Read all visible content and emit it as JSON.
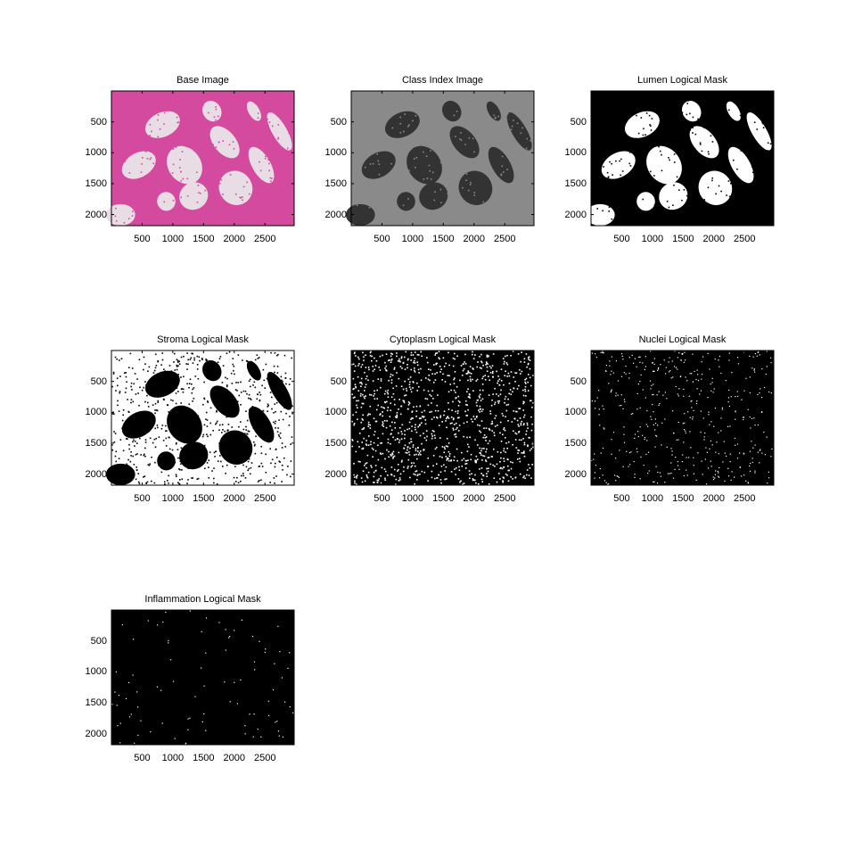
{
  "chart_data": [
    {
      "type": "heatmap",
      "title": "Base Image",
      "xticks": [
        500,
        1000,
        1500,
        2000,
        2500
      ],
      "yticks": [
        500,
        1000,
        1500,
        2000
      ],
      "xlim": [
        0,
        2976
      ],
      "ylim": [
        2180,
        0
      ],
      "colors": {
        "background": "#d44a9e",
        "highlight": "#e8dde4"
      }
    },
    {
      "type": "heatmap",
      "title": "Class Index Image",
      "xticks": [
        500,
        1000,
        1500,
        2000,
        2500
      ],
      "yticks": [
        500,
        1000,
        1500,
        2000
      ],
      "xlim": [
        0,
        2976
      ],
      "ylim": [
        2180,
        0
      ],
      "colors": {
        "background": "#8a8a8a",
        "highlight": "#333333"
      }
    },
    {
      "type": "heatmap",
      "title": "Lumen Logical Mask",
      "xticks": [
        500,
        1000,
        1500,
        2000,
        2500
      ],
      "yticks": [
        500,
        1000,
        1500,
        2000
      ],
      "xlim": [
        0,
        2976
      ],
      "ylim": [
        2180,
        0
      ],
      "colors": {
        "background": "#000000",
        "highlight": "#ffffff"
      }
    },
    {
      "type": "heatmap",
      "title": "Stroma Logical Mask",
      "xticks": [
        500,
        1000,
        1500,
        2000,
        2500
      ],
      "yticks": [
        500,
        1000,
        1500,
        2000
      ],
      "xlim": [
        0,
        2976
      ],
      "ylim": [
        2180,
        0
      ],
      "colors": {
        "background": "#ffffff",
        "highlight": "#000000"
      }
    },
    {
      "type": "heatmap",
      "title": "Cytoplasm Logical Mask",
      "xticks": [
        500,
        1000,
        1500,
        2000,
        2500
      ],
      "yticks": [
        500,
        1000,
        1500,
        2000
      ],
      "xlim": [
        0,
        2976
      ],
      "ylim": [
        2180,
        0
      ],
      "colors": {
        "background": "#000000",
        "highlight": "#ffffff"
      }
    },
    {
      "type": "heatmap",
      "title": "Nuclei Logical Mask",
      "xticks": [
        500,
        1000,
        1500,
        2000,
        2500
      ],
      "yticks": [
        500,
        1000,
        1500,
        2000
      ],
      "xlim": [
        0,
        2976
      ],
      "ylim": [
        2180,
        0
      ],
      "colors": {
        "background": "#000000",
        "highlight": "#ffffff"
      }
    },
    {
      "type": "heatmap",
      "title": "Inflammation Logical Mask",
      "xticks": [
        500,
        1000,
        1500,
        2000,
        2500
      ],
      "yticks": [
        500,
        1000,
        1500,
        2000
      ],
      "xlim": [
        0,
        2976
      ],
      "ylim": [
        2180,
        0
      ],
      "colors": {
        "background": "#000000",
        "highlight": "#ffffff"
      }
    }
  ]
}
